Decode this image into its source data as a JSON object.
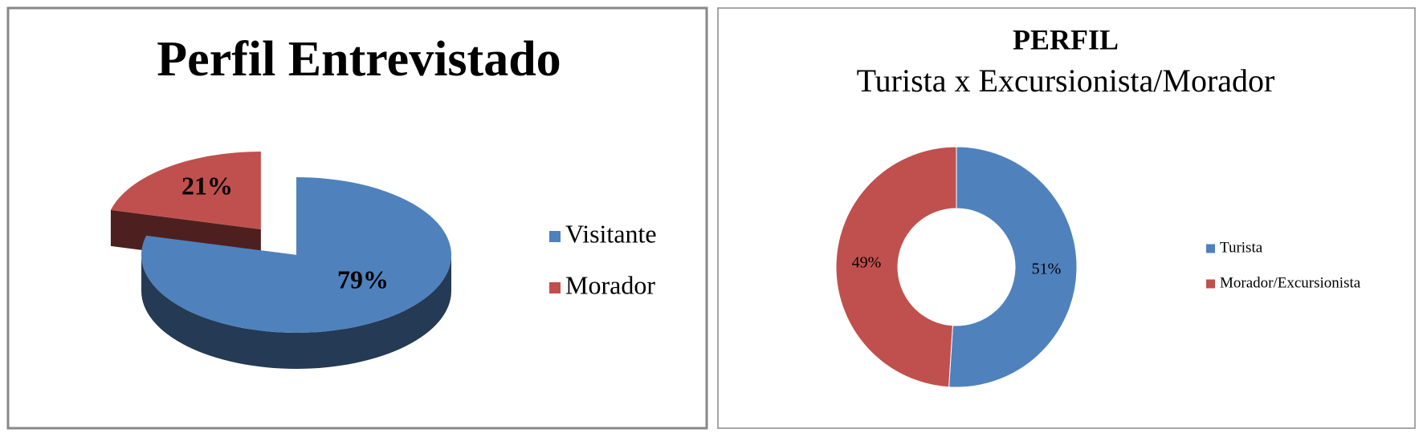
{
  "chart_data": [
    {
      "type": "pie3d",
      "title": "Perfil Entrevistado",
      "categories": [
        "Visitante",
        "Morador"
      ],
      "values": [
        79,
        21
      ],
      "value_labels": [
        "79%",
        "21%"
      ],
      "colors": [
        "#4f81bd",
        "#c0504d"
      ],
      "legend": "right"
    },
    {
      "type": "donut",
      "title": "PERFIL",
      "subtitle": "Turista x Excursionista/Morador",
      "categories": [
        "Turista",
        "Morador/Excursionista"
      ],
      "values": [
        51,
        49
      ],
      "value_labels": [
        "51%",
        "49%"
      ],
      "colors": [
        "#4f81bd",
        "#c0504d"
      ],
      "legend": "right"
    }
  ]
}
